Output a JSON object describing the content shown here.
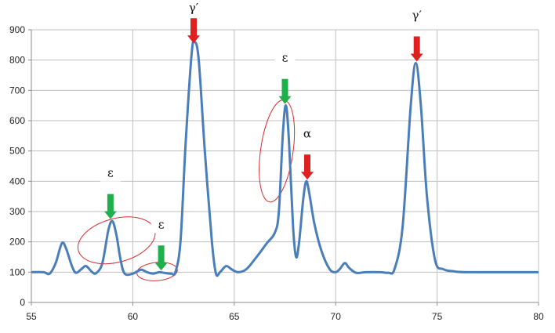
{
  "chart_data": {
    "type": "line",
    "title": "",
    "xlabel": "",
    "ylabel": "",
    "xlim": [
      55,
      80
    ],
    "ylim": [
      0,
      900
    ],
    "x_ticks": [
      55,
      60,
      65,
      70,
      75,
      80
    ],
    "y_ticks": [
      0,
      100,
      200,
      300,
      400,
      500,
      600,
      700,
      800,
      900
    ],
    "x_tick_labels": [
      "55",
      "60",
      "65",
      "70",
      "75",
      "80"
    ],
    "y_tick_labels": [
      "0",
      "100",
      "200",
      "300",
      "400",
      "500",
      "600",
      "700",
      "800",
      "900"
    ],
    "grid": true,
    "legend": "none",
    "series": [
      {
        "color": "#4a7ebb",
        "points": [
          [
            55.0,
            100
          ],
          [
            55.6,
            100
          ],
          [
            55.9,
            95
          ],
          [
            56.2,
            130
          ],
          [
            56.5,
            195
          ],
          [
            56.7,
            180
          ],
          [
            57.0,
            120
          ],
          [
            57.2,
            98
          ],
          [
            57.5,
            112
          ],
          [
            57.7,
            120
          ],
          [
            58.0,
            100
          ],
          [
            58.2,
            97
          ],
          [
            58.5,
            130
          ],
          [
            58.8,
            240
          ],
          [
            59.0,
            268
          ],
          [
            59.2,
            220
          ],
          [
            59.4,
            140
          ],
          [
            59.6,
            95
          ],
          [
            60.0,
            95
          ],
          [
            60.4,
            108
          ],
          [
            60.7,
            100
          ],
          [
            61.0,
            95
          ],
          [
            61.3,
            100
          ],
          [
            61.6,
            97
          ],
          [
            61.9,
            95
          ],
          [
            62.1,
            100
          ],
          [
            62.35,
            200
          ],
          [
            62.6,
            520
          ],
          [
            62.9,
            820
          ],
          [
            63.05,
            860
          ],
          [
            63.25,
            800
          ],
          [
            63.55,
            500
          ],
          [
            63.9,
            200
          ],
          [
            64.1,
            95
          ],
          [
            64.3,
            100
          ],
          [
            64.6,
            120
          ],
          [
            64.9,
            108
          ],
          [
            65.2,
            100
          ],
          [
            65.6,
            110
          ],
          [
            66.1,
            150
          ],
          [
            66.6,
            195
          ],
          [
            67.0,
            230
          ],
          [
            67.2,
            300
          ],
          [
            67.4,
            560
          ],
          [
            67.55,
            650
          ],
          [
            67.7,
            530
          ],
          [
            67.9,
            250
          ],
          [
            68.05,
            150
          ],
          [
            68.2,
            200
          ],
          [
            68.4,
            340
          ],
          [
            68.55,
            400
          ],
          [
            68.7,
            360
          ],
          [
            68.95,
            260
          ],
          [
            69.3,
            170
          ],
          [
            69.7,
            110
          ],
          [
            70.0,
            100
          ],
          [
            70.2,
            110
          ],
          [
            70.45,
            130
          ],
          [
            70.65,
            115
          ],
          [
            71.0,
            98
          ],
          [
            71.5,
            100
          ],
          [
            72.2,
            100
          ],
          [
            72.6,
            98
          ],
          [
            72.9,
            110
          ],
          [
            73.3,
            250
          ],
          [
            73.7,
            650
          ],
          [
            73.95,
            790
          ],
          [
            74.2,
            650
          ],
          [
            74.5,
            350
          ],
          [
            74.9,
            140
          ],
          [
            75.3,
            110
          ],
          [
            75.8,
            103
          ],
          [
            76.5,
            100
          ],
          [
            80.0,
            100
          ]
        ]
      }
    ],
    "annotations": [
      {
        "label": "γ′",
        "x": 63.0,
        "value": 850,
        "arrow": "red",
        "ellipse": false
      },
      {
        "label": "γ′",
        "x": 74.0,
        "value": 790,
        "arrow": "red",
        "ellipse": false
      },
      {
        "label": "α",
        "x": 68.6,
        "value": 400,
        "arrow": "red",
        "ellipse": false
      },
      {
        "label": "ε",
        "x": 67.5,
        "value": 650,
        "arrow": "green",
        "ellipse": true
      },
      {
        "label": "ε",
        "x": 58.9,
        "value": 270,
        "arrow": "green",
        "ellipse": true
      },
      {
        "label": "ε",
        "x": 61.4,
        "value": 100,
        "arrow": "green",
        "ellipse": true
      }
    ],
    "colors": {
      "line": "#4a7ebb",
      "grid": "#bfbfbf",
      "arrow_red": "#e02020",
      "arrow_green": "#1fb04c",
      "ellipse": "#d62c2c"
    }
  }
}
